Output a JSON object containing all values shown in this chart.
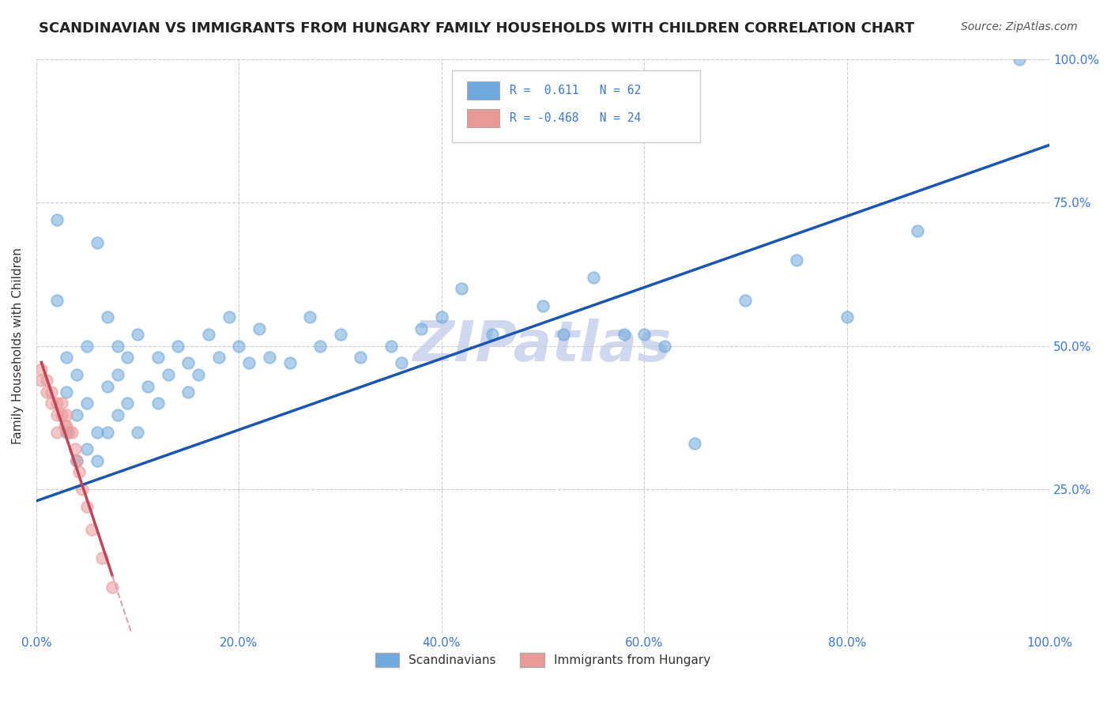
{
  "title": "SCANDINAVIAN VS IMMIGRANTS FROM HUNGARY FAMILY HOUSEHOLDS WITH CHILDREN CORRELATION CHART",
  "source": "Source: ZipAtlas.com",
  "ylabel": "Family Households with Children",
  "xlim": [
    0.0,
    1.0
  ],
  "ylim": [
    0.0,
    1.0
  ],
  "xtick_labels": [
    "0.0%",
    "20.0%",
    "40.0%",
    "60.0%",
    "80.0%",
    "100.0%"
  ],
  "xtick_vals": [
    0.0,
    0.2,
    0.4,
    0.6,
    0.8,
    1.0
  ],
  "right_ytick_labels": [
    "100.0%",
    "75.0%",
    "50.0%",
    "25.0%"
  ],
  "right_ytick_vals": [
    1.0,
    0.75,
    0.5,
    0.25
  ],
  "watermark": "ZIPatlas",
  "R_blue": 0.611,
  "N_blue": 62,
  "R_pink": -0.468,
  "N_pink": 24,
  "blue_color": "#6fa8dc",
  "pink_color": "#ea9999",
  "blue_line_color": "#1a56b0",
  "pink_line_color": "#c0445a",
  "pink_line_dash_color": "#e0a0b0",
  "scandinavian_x": [
    0.02,
    0.02,
    0.03,
    0.03,
    0.03,
    0.04,
    0.04,
    0.04,
    0.05,
    0.05,
    0.05,
    0.06,
    0.06,
    0.06,
    0.07,
    0.07,
    0.07,
    0.08,
    0.08,
    0.08,
    0.09,
    0.09,
    0.1,
    0.1,
    0.11,
    0.12,
    0.12,
    0.13,
    0.14,
    0.15,
    0.15,
    0.16,
    0.17,
    0.18,
    0.19,
    0.2,
    0.21,
    0.22,
    0.23,
    0.25,
    0.27,
    0.28,
    0.3,
    0.32,
    0.35,
    0.36,
    0.38,
    0.4,
    0.42,
    0.45,
    0.5,
    0.52,
    0.55,
    0.58,
    0.6,
    0.62,
    0.65,
    0.7,
    0.75,
    0.8,
    0.87,
    0.97
  ],
  "scandinavian_y": [
    0.58,
    0.72,
    0.42,
    0.35,
    0.48,
    0.3,
    0.38,
    0.45,
    0.32,
    0.4,
    0.5,
    0.3,
    0.35,
    0.68,
    0.35,
    0.43,
    0.55,
    0.38,
    0.45,
    0.5,
    0.4,
    0.48,
    0.35,
    0.52,
    0.43,
    0.4,
    0.48,
    0.45,
    0.5,
    0.42,
    0.47,
    0.45,
    0.52,
    0.48,
    0.55,
    0.5,
    0.47,
    0.53,
    0.48,
    0.47,
    0.55,
    0.5,
    0.52,
    0.48,
    0.5,
    0.47,
    0.53,
    0.55,
    0.6,
    0.52,
    0.57,
    0.52,
    0.62,
    0.52,
    0.52,
    0.5,
    0.33,
    0.58,
    0.65,
    0.55,
    0.7,
    1.0
  ],
  "hungary_x": [
    0.005,
    0.005,
    0.01,
    0.01,
    0.015,
    0.015,
    0.02,
    0.02,
    0.02,
    0.025,
    0.025,
    0.028,
    0.03,
    0.03,
    0.032,
    0.035,
    0.038,
    0.04,
    0.042,
    0.045,
    0.05,
    0.055,
    0.065,
    0.075
  ],
  "hungary_y": [
    0.44,
    0.46,
    0.42,
    0.44,
    0.42,
    0.4,
    0.4,
    0.38,
    0.35,
    0.4,
    0.38,
    0.36,
    0.36,
    0.38,
    0.35,
    0.35,
    0.32,
    0.3,
    0.28,
    0.25,
    0.22,
    0.18,
    0.13,
    0.08
  ],
  "legend_label_blue": "Scandinavians",
  "legend_label_pink": "Immigrants from Hungary",
  "title_color": "#222222",
  "title_fontsize": 13,
  "source_color": "#555555",
  "source_fontsize": 10,
  "axis_label_color": "#3c78d8",
  "watermark_color": "#d0d8f0",
  "watermark_fontsize": 52,
  "blue_line_x0": 0.0,
  "blue_line_y0": 0.23,
  "blue_line_x1": 1.0,
  "blue_line_y1": 0.85
}
